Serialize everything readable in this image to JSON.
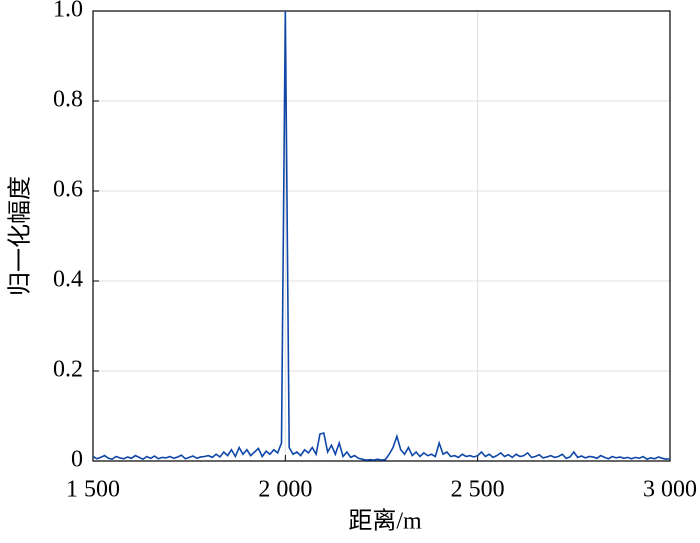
{
  "chart_data": {
    "type": "line",
    "xlabel": "距离/m",
    "ylabel": "归一化幅度",
    "xlim": [
      1500,
      3000
    ],
    "ylim": [
      0,
      1
    ],
    "xticks": [
      {
        "value": 1500,
        "label": "1 500"
      },
      {
        "value": 2000,
        "label": "2 000"
      },
      {
        "value": 2500,
        "label": "2 500"
      },
      {
        "value": 3000,
        "label": "3 000"
      }
    ],
    "yticks": [
      0,
      0.2,
      0.4,
      0.6,
      0.8,
      {
        "value": 1,
        "label": "1.0"
      }
    ],
    "grid": true,
    "series": [
      {
        "color": "#0f47a8",
        "x": [
          1500,
          1510,
          1520,
          1530,
          1540,
          1550,
          1560,
          1570,
          1580,
          1590,
          1600,
          1610,
          1620,
          1630,
          1640,
          1650,
          1660,
          1670,
          1680,
          1690,
          1700,
          1710,
          1720,
          1730,
          1740,
          1750,
          1760,
          1770,
          1780,
          1790,
          1800,
          1810,
          1820,
          1830,
          1840,
          1850,
          1860,
          1870,
          1880,
          1890,
          1900,
          1910,
          1920,
          1930,
          1940,
          1950,
          1960,
          1970,
          1980,
          1990,
          2000,
          2010,
          2020,
          2030,
          2040,
          2050,
          2060,
          2070,
          2080,
          2090,
          2100,
          2110,
          2120,
          2130,
          2140,
          2150,
          2160,
          2170,
          2180,
          2190,
          2200,
          2210,
          2220,
          2230,
          2240,
          2250,
          2260,
          2270,
          2280,
          2290,
          2300,
          2310,
          2320,
          2330,
          2340,
          2350,
          2360,
          2370,
          2380,
          2390,
          2400,
          2410,
          2420,
          2430,
          2440,
          2450,
          2460,
          2470,
          2480,
          2490,
          2500,
          2510,
          2520,
          2530,
          2540,
          2550,
          2560,
          2570,
          2580,
          2590,
          2600,
          2610,
          2620,
          2630,
          2640,
          2650,
          2660,
          2670,
          2680,
          2690,
          2700,
          2710,
          2720,
          2730,
          2740,
          2750,
          2760,
          2770,
          2780,
          2790,
          2800,
          2810,
          2820,
          2830,
          2840,
          2850,
          2860,
          2870,
          2880,
          2890,
          2900,
          2910,
          2920,
          2930,
          2940,
          2950,
          2960,
          2970,
          2980,
          2990,
          3000
        ],
        "values": [
          0.01,
          0.005,
          0.008,
          0.012,
          0.006,
          0.004,
          0.01,
          0.007,
          0.005,
          0.009,
          0.006,
          0.012,
          0.008,
          0.004,
          0.01,
          0.006,
          0.011,
          0.005,
          0.008,
          0.007,
          0.01,
          0.006,
          0.009,
          0.013,
          0.005,
          0.008,
          0.011,
          0.006,
          0.009,
          0.01,
          0.012,
          0.008,
          0.015,
          0.009,
          0.02,
          0.012,
          0.025,
          0.01,
          0.03,
          0.015,
          0.025,
          0.012,
          0.02,
          0.028,
          0.01,
          0.022,
          0.015,
          0.025,
          0.018,
          0.04,
          1,
          0.03,
          0.015,
          0.02,
          0.012,
          0.025,
          0.018,
          0.03,
          0.015,
          0.06,
          0.062,
          0.02,
          0.035,
          0.015,
          0.04,
          0.01,
          0.02,
          0.008,
          0.012,
          0.006,
          0.004,
          0.002,
          0.003,
          0.002,
          0.004,
          0.002,
          0.003,
          0.015,
          0.03,
          0.055,
          0.025,
          0.015,
          0.03,
          0.012,
          0.02,
          0.01,
          0.018,
          0.012,
          0.015,
          0.01,
          0.04,
          0.015,
          0.02,
          0.01,
          0.012,
          0.008,
          0.015,
          0.01,
          0.012,
          0.009,
          0.012,
          0.02,
          0.01,
          0.015,
          0.008,
          0.012,
          0.018,
          0.01,
          0.014,
          0.008,
          0.015,
          0.01,
          0.012,
          0.018,
          0.008,
          0.01,
          0.014,
          0.007,
          0.009,
          0.012,
          0.008,
          0.01,
          0.015,
          0.006,
          0.009,
          0.02,
          0.008,
          0.011,
          0.007,
          0.01,
          0.009,
          0.006,
          0.012,
          0.008,
          0.005,
          0.01,
          0.007,
          0.009,
          0.006,
          0.008,
          0.005,
          0.008,
          0.006,
          0.01,
          0.004,
          0.007,
          0.005,
          0.009,
          0.006,
          0.004,
          0.005
        ]
      }
    ]
  }
}
